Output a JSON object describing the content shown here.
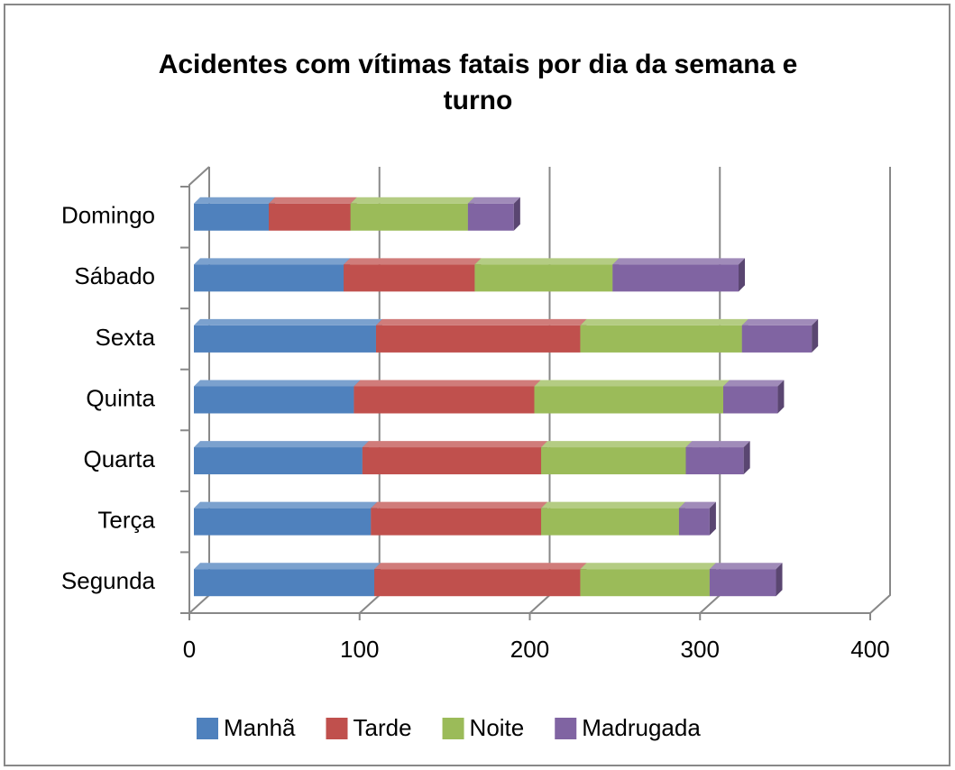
{
  "chart_data": {
    "type": "bar",
    "orientation": "horizontal",
    "stacked": true,
    "title": "Acidentes com vítimas fatais por dia da semana e turno",
    "categories": [
      "Segunda",
      "Terça",
      "Quarta",
      "Quinta",
      "Sexta",
      "Sábado",
      "Domingo"
    ],
    "series": [
      {
        "name": "Manhã",
        "color": "#4f81bd",
        "values": [
          106,
          104,
          99,
          94,
          107,
          88,
          44
        ]
      },
      {
        "name": "Tarde",
        "color": "#c0504d",
        "values": [
          121,
          100,
          105,
          106,
          120,
          77,
          48
        ]
      },
      {
        "name": "Noite",
        "color": "#9bbb59",
        "values": [
          76,
          81,
          85,
          111,
          95,
          81,
          69
        ]
      },
      {
        "name": "Madrugada",
        "color": "#8064a2",
        "values": [
          39,
          18,
          34,
          32,
          41,
          74,
          27
        ]
      }
    ],
    "xlim": [
      0,
      400
    ],
    "xticks": [
      0,
      100,
      200,
      300,
      400
    ],
    "grid": true,
    "legend": "bottom"
  }
}
